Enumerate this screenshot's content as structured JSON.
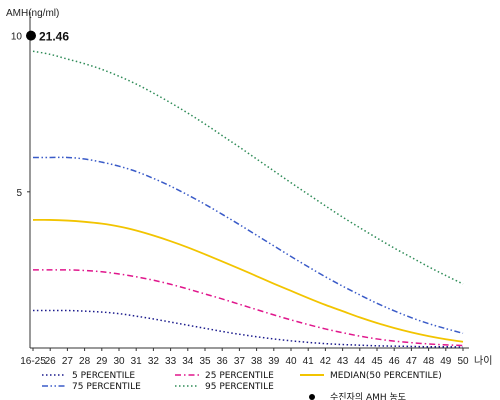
{
  "chart_data": {
    "type": "line",
    "ylabel": "AMH(ng/ml)",
    "xlabel": "나이",
    "x": [
      "16-25",
      "26",
      "27",
      "28",
      "29",
      "30",
      "31",
      "32",
      "33",
      "34",
      "35",
      "36",
      "37",
      "38",
      "39",
      "40",
      "41",
      "42",
      "43",
      "44",
      "45",
      "46",
      "47",
      "48",
      "49",
      "50"
    ],
    "yticks": [
      "10",
      "5"
    ],
    "ylim": [
      0,
      10.5
    ],
    "grid": false,
    "legend_position": "bottom",
    "series": [
      {
        "name": "5 PERCENTILE",
        "color": "#1a1a8c",
        "dash": "dotted",
        "values": [
          1.2,
          1.2,
          1.2,
          1.18,
          1.15,
          1.1,
          1.02,
          0.93,
          0.83,
          0.73,
          0.63,
          0.53,
          0.44,
          0.36,
          0.29,
          0.23,
          0.18,
          0.14,
          0.11,
          0.09,
          0.07,
          0.06,
          0.05,
          0.04,
          0.04,
          0.03
        ]
      },
      {
        "name": "25 PERCENTILE",
        "color": "#e0168c",
        "dash": "dashdot",
        "values": [
          2.5,
          2.5,
          2.5,
          2.48,
          2.44,
          2.37,
          2.28,
          2.17,
          2.04,
          1.89,
          1.73,
          1.57,
          1.4,
          1.23,
          1.06,
          0.9,
          0.75,
          0.61,
          0.49,
          0.38,
          0.29,
          0.22,
          0.17,
          0.13,
          0.1,
          0.08
        ]
      },
      {
        "name": "MEDIAN(50 PERCENTILE)",
        "color": "#f2c400",
        "dash": "solid",
        "values": [
          4.1,
          4.1,
          4.08,
          4.04,
          3.98,
          3.89,
          3.76,
          3.6,
          3.42,
          3.22,
          3.0,
          2.77,
          2.54,
          2.3,
          2.06,
          1.83,
          1.6,
          1.38,
          1.18,
          0.98,
          0.8,
          0.64,
          0.5,
          0.38,
          0.28,
          0.2
        ]
      },
      {
        "name": "75 PERCENTILE",
        "color": "#3a5bc8",
        "dash": "dashdotdot",
        "values": [
          6.1,
          6.1,
          6.1,
          6.05,
          5.95,
          5.82,
          5.65,
          5.43,
          5.18,
          4.9,
          4.6,
          4.28,
          3.95,
          3.61,
          3.27,
          2.93,
          2.6,
          2.28,
          1.98,
          1.7,
          1.43,
          1.19,
          0.97,
          0.78,
          0.62,
          0.47
        ]
      },
      {
        "name": "95 PERCENTILE",
        "color": "#2e8b57",
        "dash": "dotted",
        "values": [
          9.5,
          9.4,
          9.25,
          9.1,
          8.92,
          8.7,
          8.45,
          8.16,
          7.85,
          7.52,
          7.17,
          6.8,
          6.43,
          6.05,
          5.67,
          5.29,
          4.92,
          4.55,
          4.19,
          3.85,
          3.52,
          3.2,
          2.9,
          2.6,
          2.32,
          2.05
        ]
      },
      {
        "name": "수진자의 AMH 농도",
        "color": "#000000",
        "type": "marker",
        "x": "16-25",
        "value": 10,
        "label": "21.46"
      }
    ]
  }
}
